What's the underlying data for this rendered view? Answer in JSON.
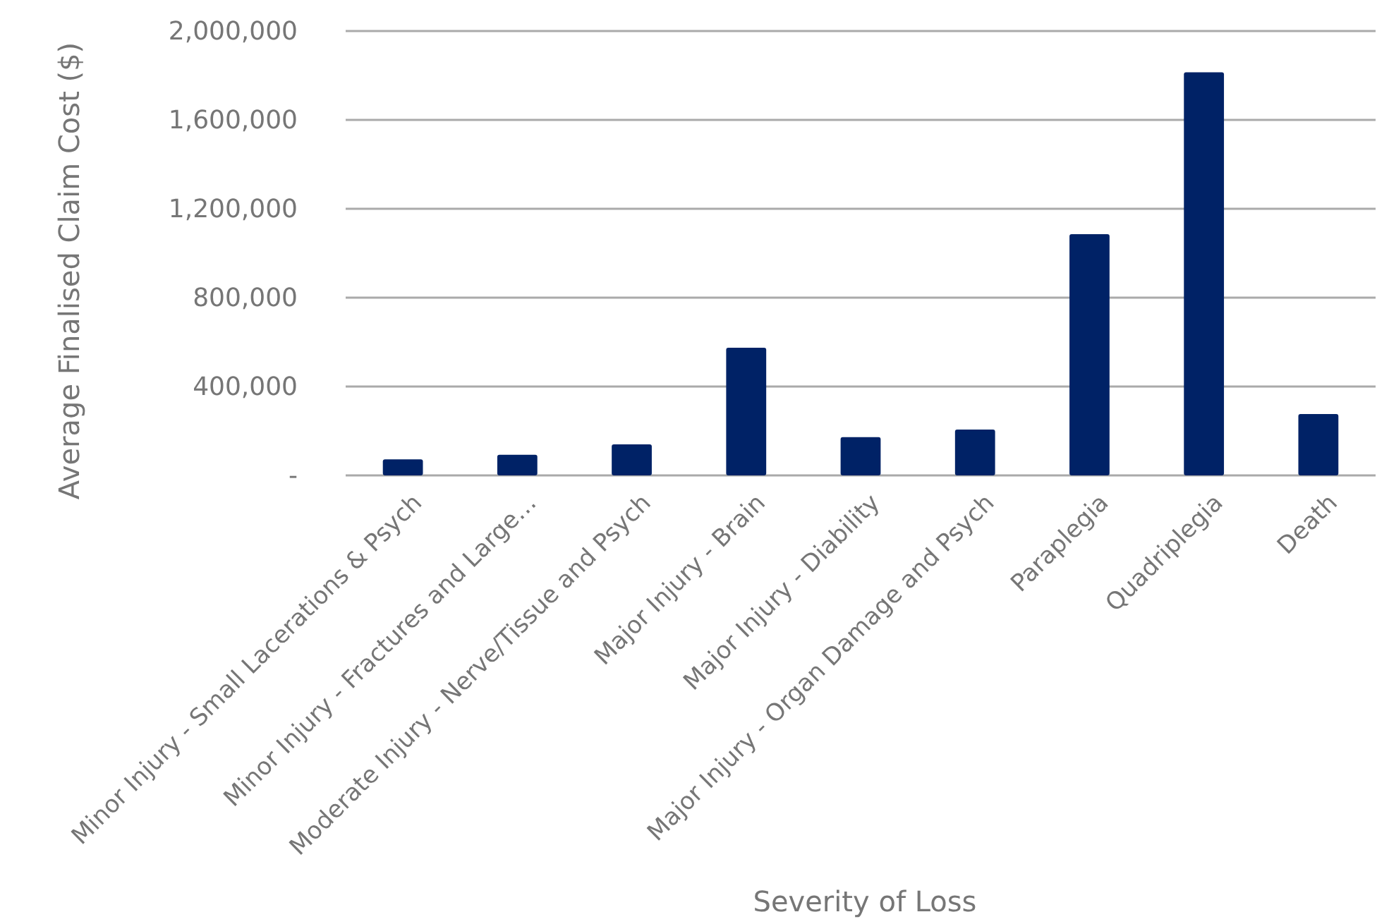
{
  "chart_data": {
    "type": "bar",
    "xlabel": "Severity of Loss",
    "ylabel": "Average Finalised Claim Cost ($)",
    "categories": [
      "Minor Injury - Small Lacerations & Psych",
      "Minor Injury - Fractures and Large…",
      "Moderate Injury - Nerve/Tissue and Psych",
      "Major Injury - Brain",
      "Major Injury - Diability",
      "Major Injury - Organ Damage and Psych",
      "Paraplegia",
      "Quadriplegia",
      "Death"
    ],
    "values": [
      72000,
      93000,
      140000,
      575000,
      172000,
      206000,
      1086000,
      1814000,
      276000
    ],
    "color": "#002266",
    "ylim": [
      0,
      2000000
    ],
    "yticks": [
      {
        "value": 0,
        "label": "-"
      },
      {
        "value": 400000,
        "label": "400,000"
      },
      {
        "value": 800000,
        "label": "800,000"
      },
      {
        "value": 1200000,
        "label": "1,200,000"
      },
      {
        "value": 1600000,
        "label": "1,600,000"
      },
      {
        "value": 2000000,
        "label": "2,000,000"
      }
    ],
    "grid": "y"
  }
}
